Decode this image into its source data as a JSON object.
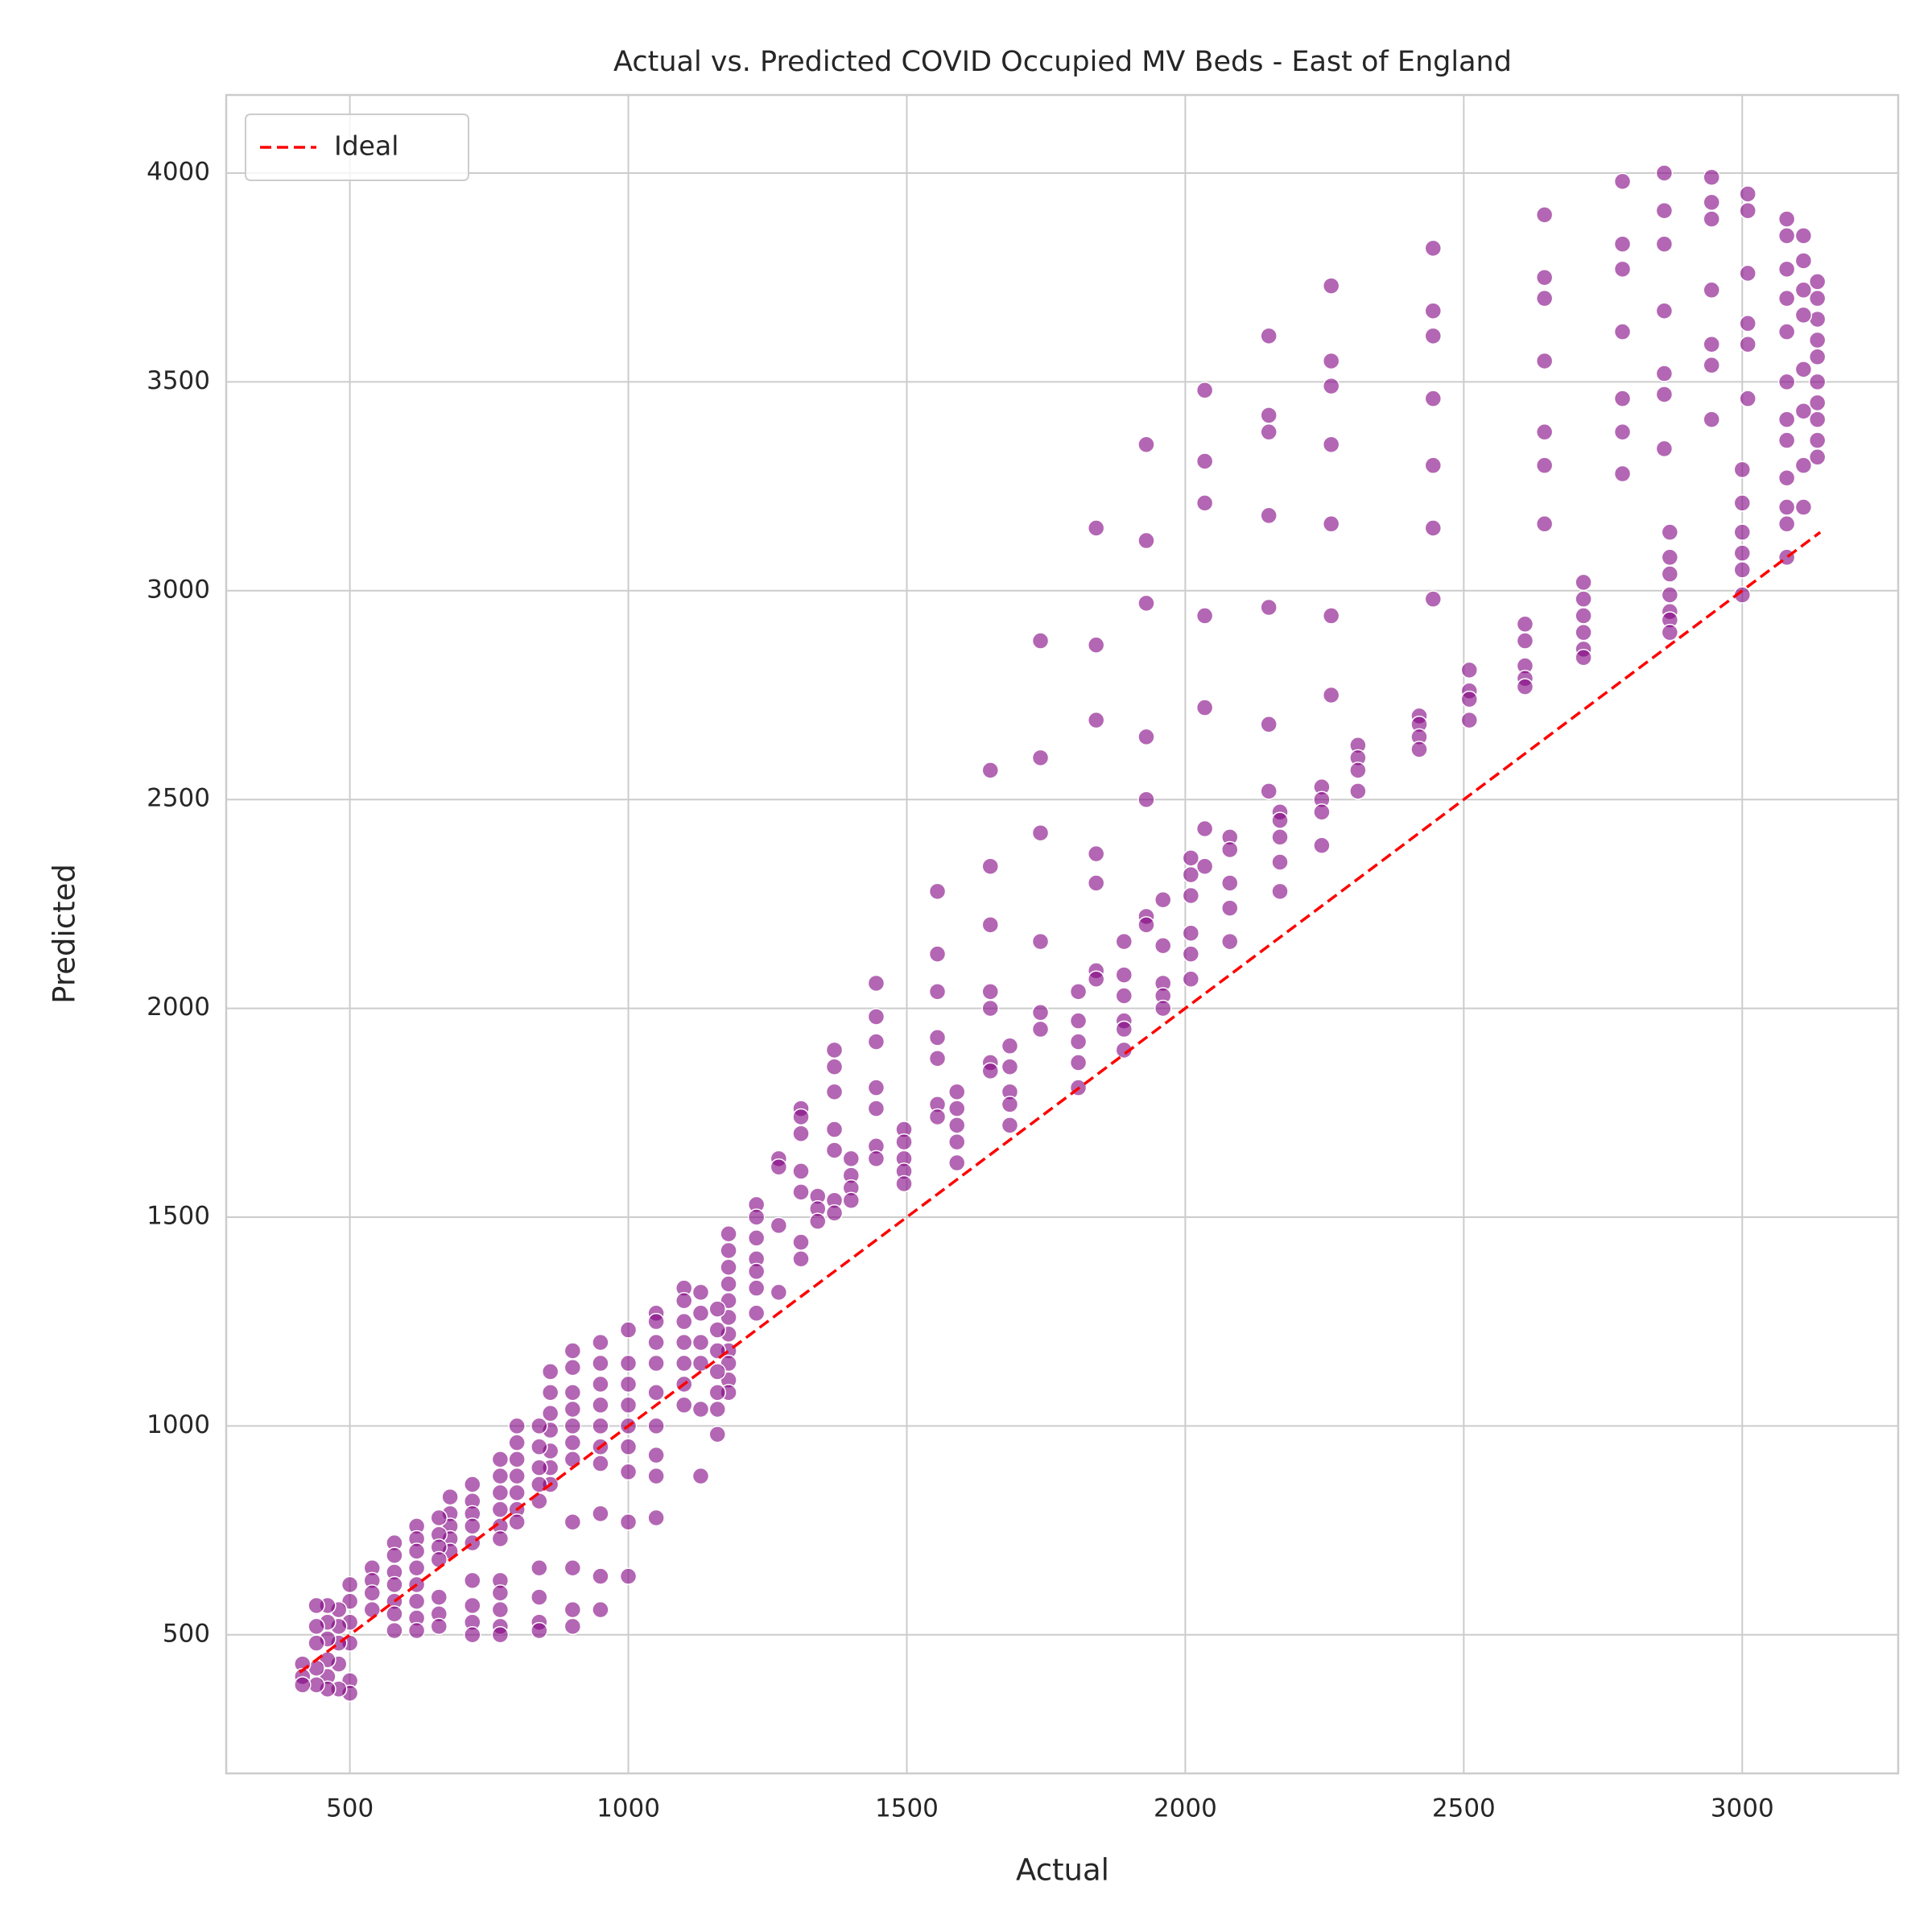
{
  "chart_data": {
    "type": "scatter",
    "title": "Actual vs. Predicted COVID Occupied MV Beds - East of England",
    "x_label": "Actual",
    "y_label": "Predicted",
    "xlim": [
      278,
      3280
    ],
    "ylim": [
      168,
      4187
    ],
    "xticks": [
      500,
      1000,
      1500,
      2000,
      2500,
      3000
    ],
    "yticks": [
      500,
      1000,
      1500,
      2000,
      2500,
      3000,
      3500,
      4000
    ],
    "grid": true,
    "legend": "upper left",
    "series": [
      {
        "type": "scatter",
        "color": "#800080",
        "x": [
          3135,
          3135,
          3135,
          3135,
          3135,
          3135,
          3135,
          3135,
          3135,
          3135,
          3110,
          3110,
          3110,
          3110,
          3110,
          3110,
          3110,
          3110,
          3080,
          3080,
          3080,
          3080,
          3080,
          3080,
          3080,
          3080,
          3080,
          3080,
          3080,
          3080,
          3010,
          3010,
          3010,
          3010,
          3010,
          3010,
          3000,
          3000,
          3000,
          3000,
          3000,
          3000,
          2945,
          2945,
          2945,
          2945,
          2945,
          2945,
          2945,
          2860,
          2860,
          2860,
          2860,
          2860,
          2860,
          2860,
          2870,
          2870,
          2870,
          2870,
          2870,
          2870,
          2870,
          2785,
          2785,
          2785,
          2785,
          2785,
          2785,
          2785,
          2715,
          2715,
          2715,
          2715,
          2715,
          2715,
          2645,
          2645,
          2645,
          2645,
          2645,
          2645,
          2645,
          2610,
          2610,
          2610,
          2610,
          2610,
          2510,
          2510,
          2510,
          2510,
          2445,
          2445,
          2445,
          2445,
          2445,
          2445,
          2445,
          2420,
          2420,
          2420,
          2420,
          2310,
          2310,
          2310,
          2310,
          2262,
          2262,
          2262,
          2262,
          2262,
          2262,
          2262,
          2245,
          2245,
          2245,
          2245,
          2170,
          2170,
          2170,
          2170,
          2170,
          2150,
          2150,
          2150,
          2150,
          2150,
          2150,
          2150,
          2080,
          2080,
          2080,
          2080,
          2080,
          2035,
          2035,
          2035,
          2035,
          2035,
          2035,
          2035,
          2010,
          2010,
          2010,
          2010,
          2010,
          2010,
          1960,
          1960,
          1960,
          1960,
          1960,
          1930,
          1930,
          1930,
          1930,
          1930,
          1930,
          1930,
          1890,
          1890,
          1890,
          1890,
          1890,
          1890,
          1840,
          1840,
          1840,
          1840,
          1840,
          1840,
          1840,
          1808,
          1808,
          1808,
          1808,
          1808,
          1740,
          1740,
          1740,
          1740,
          1740,
          1740,
          1685,
          1685,
          1685,
          1685,
          1685,
          1650,
          1650,
          1650,
          1650,
          1650,
          1650,
          1650,
          1590,
          1590,
          1590,
          1590,
          1590,
          1555,
          1555,
          1555,
          1555,
          1555,
          1555,
          1555,
          1495,
          1495,
          1495,
          1495,
          1495,
          1445,
          1445,
          1445,
          1445,
          1445,
          1445,
          1445,
          1400,
          1400,
          1400,
          1400,
          1370,
          1370,
          1370,
          1370,
          1370,
          1370,
          1370,
          1340,
          1340,
          1340,
          1310,
          1310,
          1310,
          1310,
          1310,
          1310,
          1310,
          1270,
          1270,
          1270,
          1270,
          1230,
          1230,
          1230,
          1230,
          1230,
          1230,
          1230,
          1180,
          1180,
          1180,
          1180,
          1180,
          1180,
          1180,
          1180,
          1180,
          1180,
          1180,
          1160,
          1160,
          1160,
          1160,
          1160,
          1160,
          1160,
          1130,
          1130,
          1130,
          1130,
          1130,
          1130,
          1100,
          1100,
          1100,
          1100,
          1100,
          1100,
          1100,
          1050,
          1050,
          1050,
          1050,
          1050,
          1050,
          1050,
          1050,
          1050,
          1000,
          1000,
          1000,
          1000,
          1000,
          1000,
          1000,
          1000,
          1000,
          950,
          950,
          950,
          950,
          950,
          950,
          950,
          950,
          950,
          950,
          900,
          900,
          900,
          900,
          900,
          900,
          900,
          900,
          900,
          900,
          900,
          860,
          860,
          860,
          860,
          860,
          860,
          860,
          840,
          840,
          840,
          840,
          840,
          840,
          840,
          840,
          840,
          800,
          800,
          800,
          800,
          800,
          800,
          800,
          770,
          770,
          770,
          770,
          770,
          770,
          770,
          770,
          770,
          770,
          770,
          720,
          720,
          720,
          720,
          720,
          720,
          720,
          720,
          720,
          680,
          680,
          680,
          680,
          680,
          660,
          660,
          660,
          660,
          660,
          660,
          660,
          620,
          620,
          620,
          620,
          620,
          620,
          620,
          620,
          580,
          580,
          580,
          580,
          580,
          580,
          580,
          540,
          540,
          540,
          540,
          500,
          500,
          500,
          500,
          500,
          500,
          480,
          480,
          480,
          480,
          480,
          460,
          460,
          460,
          460,
          460,
          460,
          440,
          440,
          440,
          440,
          440,
          415,
          415,
          415
        ],
        "values": [
          3740,
          3700,
          3650,
          3600,
          3560,
          3500,
          3450,
          3410,
          3360,
          3320,
          3850,
          3790,
          3720,
          3660,
          3530,
          3430,
          3300,
          3200,
          3890,
          3850,
          3770,
          3700,
          3620,
          3500,
          3410,
          3360,
          3270,
          3200,
          3160,
          3080,
          3950,
          3910,
          3760,
          3640,
          3590,
          3460,
          3290,
          3210,
          3140,
          3090,
          3050,
          2990,
          3990,
          3930,
          3890,
          3720,
          3590,
          3540,
          3410,
          4000,
          3910,
          3830,
          3670,
          3520,
          3470,
          3340,
          3140,
          3080,
          3040,
          2990,
          2950,
          2930,
          2900,
          3980,
          3830,
          3770,
          3620,
          3460,
          3380,
          3280,
          3020,
          2980,
          2940,
          2900,
          2860,
          2840,
          3900,
          3750,
          3700,
          3550,
          3380,
          3300,
          3160,
          2920,
          2880,
          2820,
          2790,
          2770,
          2810,
          2760,
          2740,
          2690,
          3820,
          3670,
          3610,
          3460,
          3300,
          3150,
          2980,
          2700,
          2680,
          2650,
          2620,
          2630,
          2600,
          2570,
          2520,
          3730,
          3550,
          3490,
          3350,
          3160,
          2940,
          2750,
          2530,
          2500,
          2470,
          2390,
          2470,
          2450,
          2410,
          2350,
          2280,
          3610,
          3420,
          3380,
          3180,
          2960,
          2680,
          2520,
          2410,
          2380,
          2300,
          2240,
          2160,
          3480,
          3310,
          3210,
          2940,
          2720,
          2430,
          2340,
          2360,
          2320,
          2270,
          2180,
          2130,
          2070,
          2260,
          2150,
          2060,
          2030,
          2000,
          3350,
          3120,
          2970,
          2650,
          2500,
          2220,
          2200,
          2160,
          2080,
          2030,
          1970,
          1950,
          1900,
          3150,
          2870,
          2690,
          2370,
          2300,
          2090,
          2070,
          2040,
          1970,
          1920,
          1870,
          1810,
          2880,
          2600,
          2420,
          2160,
          1990,
          1950,
          1910,
          1860,
          1800,
          1770,
          1720,
          2570,
          2340,
          2200,
          2040,
          2000,
          1870,
          1850,
          1800,
          1760,
          1720,
          1680,
          1630,
          2280,
          2130,
          2040,
          1930,
          1880,
          1770,
          1740,
          1710,
          1680,
          1640,
          1610,
          1580,
          2060,
          1980,
          1920,
          1810,
          1760,
          1670,
          1640,
          1640,
          1600,
          1570,
          1540,
          1900,
          1860,
          1800,
          1710,
          1660,
          1540,
          1510,
          1550,
          1520,
          1490,
          1760,
          1740,
          1700,
          1610,
          1560,
          1440,
          1400,
          1640,
          1620,
          1480,
          1320,
          1530,
          1500,
          1450,
          1400,
          1370,
          1330,
          1270,
          1460,
          1420,
          1380,
          1340,
          1300,
          1260,
          1220,
          1180,
          1150,
          1110,
          1080,
          1280,
          1230,
          1180,
          1130,
          1080,
          1040,
          980,
          1320,
          1270,
          1200,
          1150,
          1040,
          880,
          1330,
          1300,
          1250,
          1200,
          1150,
          1100,
          1050,
          1270,
          1250,
          1200,
          1150,
          1080,
          1000,
          930,
          880,
          780,
          1230,
          1150,
          1100,
          1050,
          1000,
          950,
          890,
          770,
          640,
          1200,
          1150,
          1100,
          1050,
          1000,
          950,
          910,
          790,
          640,
          560,
          1180,
          1140,
          1080,
          1040,
          1000,
          960,
          920,
          770,
          660,
          560,
          520,
          1130,
          1080,
          1030,
          990,
          940,
          900,
          860,
          1000,
          950,
          900,
          860,
          820,
          660,
          590,
          530,
          510,
          1000,
          960,
          920,
          880,
          840,
          800,
          770,
          920,
          880,
          840,
          800,
          760,
          730,
          630,
          600,
          560,
          520,
          500,
          860,
          820,
          790,
          760,
          720,
          630,
          570,
          530,
          500,
          830,
          790,
          760,
          730,
          700,
          780,
          740,
          710,
          680,
          590,
          550,
          520,
          760,
          730,
          700,
          660,
          620,
          580,
          540,
          510,
          720,
          690,
          650,
          620,
          580,
          550,
          510,
          660,
          630,
          600,
          560,
          620,
          580,
          530,
          480,
          390,
          360,
          560,
          520,
          480,
          430,
          370,
          570,
          530,
          490,
          440,
          400,
          370,
          570,
          520,
          480,
          420,
          380,
          430,
          400,
          380
        ]
      },
      {
        "type": "line",
        "name": "Ideal",
        "color": "#ff0000",
        "style": "dashed",
        "x": [
          410,
          3140
        ],
        "values": [
          410,
          3140
        ]
      }
    ]
  }
}
